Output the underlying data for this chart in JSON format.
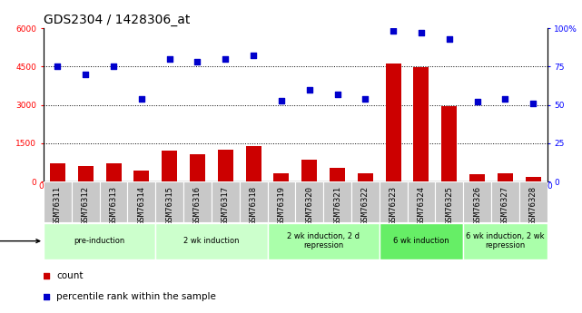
{
  "title": "GDS2304 / 1428306_at",
  "samples": [
    "GSM76311",
    "GSM76312",
    "GSM76313",
    "GSM76314",
    "GSM76315",
    "GSM76316",
    "GSM76317",
    "GSM76318",
    "GSM76319",
    "GSM76320",
    "GSM76321",
    "GSM76322",
    "GSM76323",
    "GSM76324",
    "GSM76325",
    "GSM76326",
    "GSM76327",
    "GSM76328"
  ],
  "counts": [
    700,
    620,
    730,
    440,
    1220,
    1080,
    1250,
    1380,
    330,
    870,
    530,
    330,
    4600,
    4480,
    2950,
    280,
    320,
    180
  ],
  "percentile": [
    75,
    70,
    75,
    54,
    80,
    78,
    80,
    82,
    53,
    60,
    57,
    54,
    98,
    97,
    93,
    52,
    54,
    51
  ],
  "ylim_left": [
    0,
    6000
  ],
  "ylim_right": [
    0,
    100
  ],
  "yticks_left": [
    0,
    1500,
    3000,
    4500,
    6000
  ],
  "yticks_right": [
    0,
    25,
    50,
    75,
    100
  ],
  "ytick_labels_left": [
    "0",
    "1500",
    "3000",
    "4500",
    "6000"
  ],
  "ytick_labels_right": [
    "0",
    "25",
    "50",
    "75",
    "100%"
  ],
  "bar_color": "#cc0000",
  "scatter_color": "#0000cc",
  "groups": [
    {
      "label": "pre-induction",
      "start": 0,
      "end": 3,
      "color": "#ccffcc"
    },
    {
      "label": "2 wk induction",
      "start": 4,
      "end": 7,
      "color": "#ccffcc"
    },
    {
      "label": "2 wk induction, 2 d\nrepression",
      "start": 8,
      "end": 11,
      "color": "#aaffaa"
    },
    {
      "label": "6 wk induction",
      "start": 12,
      "end": 14,
      "color": "#66ee66"
    },
    {
      "label": "6 wk induction, 2 wk\nrepression",
      "start": 15,
      "end": 17,
      "color": "#aaffaa"
    }
  ],
  "bar_width": 0.55,
  "title_fontsize": 10,
  "tick_fontsize": 6.5,
  "legend_fontsize": 7.5,
  "plot_bg": "#ffffff"
}
